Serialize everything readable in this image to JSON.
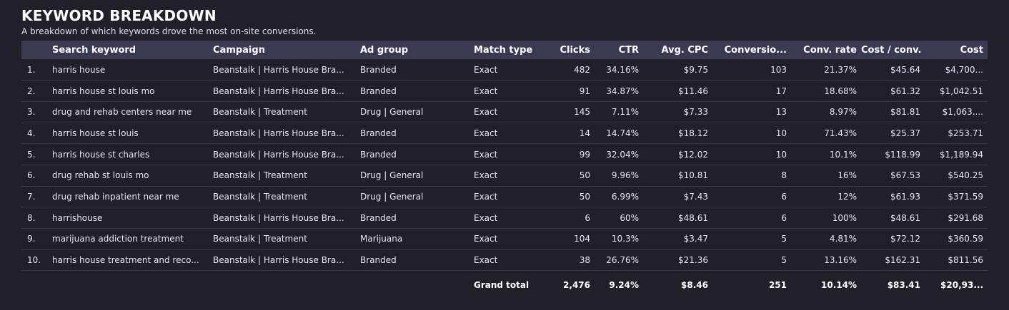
{
  "header": {
    "title": "KEYWORD BREAKDOWN",
    "subtitle": "A breakdown of which keywords drove the most on-site conversions."
  },
  "table": {
    "columns": {
      "keyword": "Search keyword",
      "campaign": "Campaign",
      "ad_group": "Ad group",
      "match_type": "Match type",
      "clicks": "Clicks",
      "ctr": "CTR",
      "avg_cpc": "Avg. CPC",
      "conversions": "Conversio...",
      "conv_rate": "Conv. rate",
      "cost_per_conv": "Cost / conv.",
      "cost": "Cost"
    },
    "rows": [
      {
        "index": "1.",
        "keyword": "harris house",
        "campaign": "Beanstalk | Harris House Bra...",
        "ad_group": "Branded",
        "match_type": "Exact",
        "clicks": "482",
        "ctr": "34.16%",
        "avg_cpc": "$9.75",
        "conversions": "103",
        "conv_rate": "21.37%",
        "cost_per_conv": "$45.64",
        "cost": "$4,700..."
      },
      {
        "index": "2.",
        "keyword": "harris house st louis mo",
        "campaign": "Beanstalk | Harris House Bra...",
        "ad_group": "Branded",
        "match_type": "Exact",
        "clicks": "91",
        "ctr": "34.87%",
        "avg_cpc": "$11.46",
        "conversions": "17",
        "conv_rate": "18.68%",
        "cost_per_conv": "$61.32",
        "cost": "$1,042.51"
      },
      {
        "index": "3.",
        "keyword": "drug and rehab centers near me",
        "campaign": "Beanstalk | Treatment",
        "ad_group": "Drug | General",
        "match_type": "Exact",
        "clicks": "145",
        "ctr": "7.11%",
        "avg_cpc": "$7.33",
        "conversions": "13",
        "conv_rate": "8.97%",
        "cost_per_conv": "$81.81",
        "cost": "$1,063...."
      },
      {
        "index": "4.",
        "keyword": "harris house st louis",
        "campaign": "Beanstalk | Harris House Bra...",
        "ad_group": "Branded",
        "match_type": "Exact",
        "clicks": "14",
        "ctr": "14.74%",
        "avg_cpc": "$18.12",
        "conversions": "10",
        "conv_rate": "71.43%",
        "cost_per_conv": "$25.37",
        "cost": "$253.71"
      },
      {
        "index": "5.",
        "keyword": "harris house st charles",
        "campaign": "Beanstalk | Harris House Bra...",
        "ad_group": "Branded",
        "match_type": "Exact",
        "clicks": "99",
        "ctr": "32.04%",
        "avg_cpc": "$12.02",
        "conversions": "10",
        "conv_rate": "10.1%",
        "cost_per_conv": "$118.99",
        "cost": "$1,189.94"
      },
      {
        "index": "6.",
        "keyword": "drug rehab st louis mo",
        "campaign": "Beanstalk | Treatment",
        "ad_group": "Drug | General",
        "match_type": "Exact",
        "clicks": "50",
        "ctr": "9.96%",
        "avg_cpc": "$10.81",
        "conversions": "8",
        "conv_rate": "16%",
        "cost_per_conv": "$67.53",
        "cost": "$540.25"
      },
      {
        "index": "7.",
        "keyword": "drug rehab inpatient near me",
        "campaign": "Beanstalk | Treatment",
        "ad_group": "Drug | General",
        "match_type": "Exact",
        "clicks": "50",
        "ctr": "6.99%",
        "avg_cpc": "$7.43",
        "conversions": "6",
        "conv_rate": "12%",
        "cost_per_conv": "$61.93",
        "cost": "$371.59"
      },
      {
        "index": "8.",
        "keyword": "harrishouse",
        "campaign": "Beanstalk | Harris House Bra...",
        "ad_group": "Branded",
        "match_type": "Exact",
        "clicks": "6",
        "ctr": "60%",
        "avg_cpc": "$48.61",
        "conversions": "6",
        "conv_rate": "100%",
        "cost_per_conv": "$48.61",
        "cost": "$291.68"
      },
      {
        "index": "9.",
        "keyword": "marijuana addiction treatment",
        "campaign": "Beanstalk | Treatment",
        "ad_group": "Marijuana",
        "match_type": "Exact",
        "clicks": "104",
        "ctr": "10.3%",
        "avg_cpc": "$3.47",
        "conversions": "5",
        "conv_rate": "4.81%",
        "cost_per_conv": "$72.12",
        "cost": "$360.59"
      },
      {
        "index": "10.",
        "keyword": "harris house treatment and reco...",
        "campaign": "Beanstalk | Harris House Bra...",
        "ad_group": "Branded",
        "match_type": "Exact",
        "clicks": "38",
        "ctr": "26.76%",
        "avg_cpc": "$21.36",
        "conversions": "5",
        "conv_rate": "13.16%",
        "cost_per_conv": "$162.31",
        "cost": "$811.56"
      }
    ],
    "total": {
      "label": "Grand total",
      "clicks": "2,476",
      "ctr": "9.24%",
      "avg_cpc": "$8.46",
      "conversions": "251",
      "conv_rate": "10.14%",
      "cost_per_conv": "$83.41",
      "cost": "$20,93..."
    }
  },
  "colors": {
    "background": "#212029",
    "header_row": "#3b3a52",
    "row_divider": "#3a3947",
    "text": "#e6e6ec"
  }
}
